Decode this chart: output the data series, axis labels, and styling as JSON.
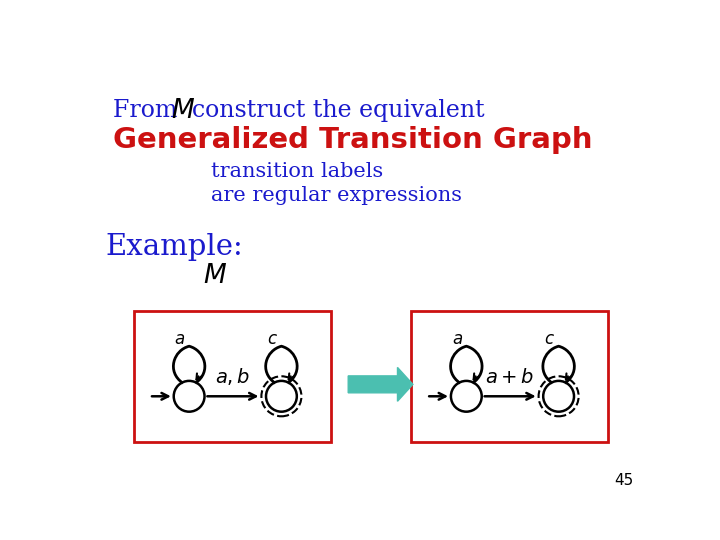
{
  "title_line1_prefix": "From ",
  "title_line1_M": "$\\mathcal{M}$",
  "title_line1_suffix": " construct the equivalent",
  "title_line2": "Generalized Transition Graph",
  "subtitle1": "transition labels",
  "subtitle2": "are regular expressions",
  "example_label": "Example:",
  "M_label": "$\\mathcal{M}$",
  "page_number": "45",
  "bg_color": "#ffffff",
  "blue_color": "#1a1acd",
  "red_color": "#cc1111",
  "teal_color": "#4bbfb0",
  "box1_label": "$a,b$",
  "box2_label": "$a+b$"
}
